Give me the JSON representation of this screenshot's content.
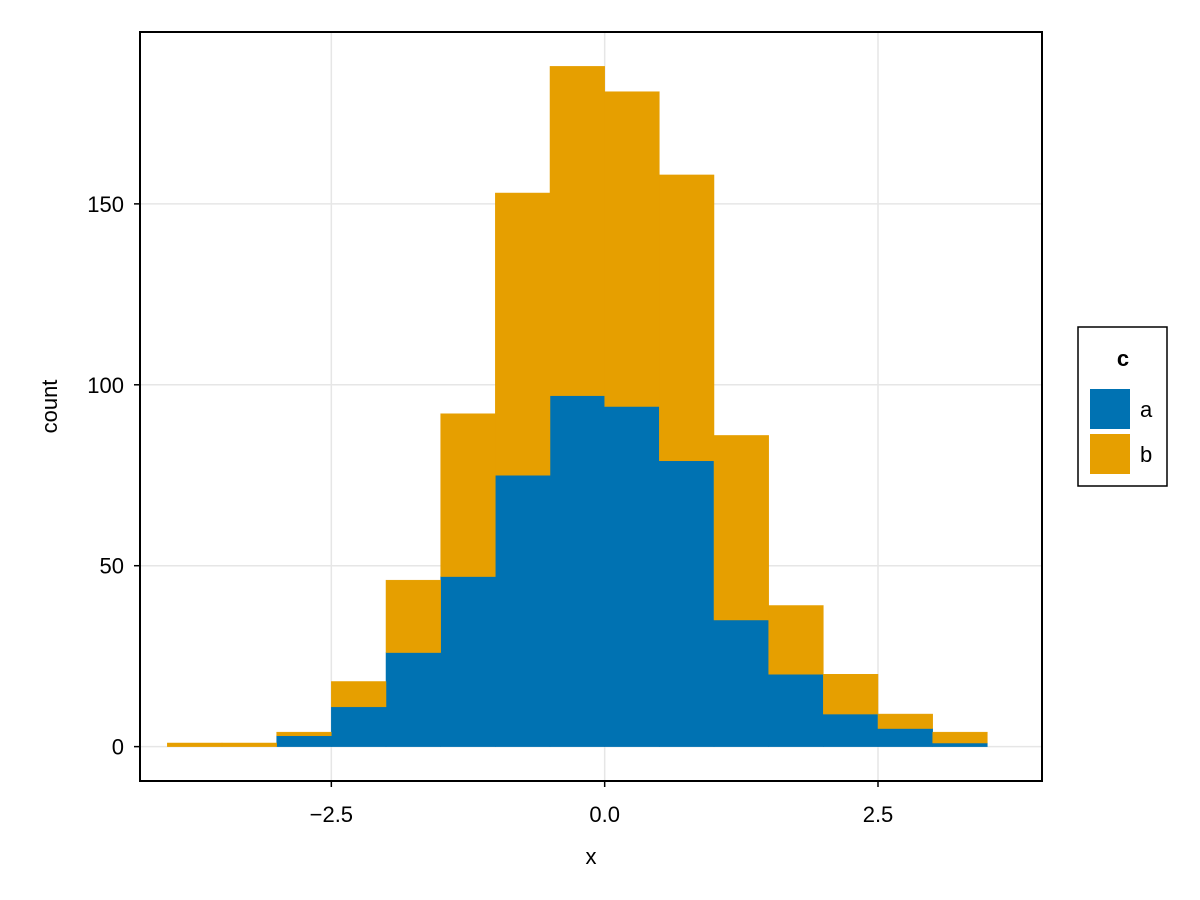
{
  "chart_data": {
    "type": "bar",
    "stacked": true,
    "title": "",
    "xlabel": "x",
    "ylabel": "count",
    "bin_edges": [
      -4.0,
      -3.5,
      -3.0,
      -2.5,
      -2.0,
      -1.5,
      -1.0,
      -0.5,
      0.0,
      0.5,
      1.0,
      1.5,
      2.0,
      2.5,
      3.0,
      3.5
    ],
    "series": [
      {
        "name": "a",
        "color": "#0072b2",
        "values": [
          0,
          0,
          3,
          11,
          26,
          47,
          75,
          97,
          94,
          79,
          35,
          20,
          9,
          5,
          1
        ]
      },
      {
        "name": "b",
        "color": "#e69f00",
        "values": [
          1,
          1,
          1,
          7,
          20,
          45,
          78,
          91,
          87,
          79,
          51,
          19,
          11,
          4,
          3
        ]
      }
    ],
    "xlim": [
      -4.25,
      4.0
    ],
    "ylim": [
      -9.5,
      197.5
    ],
    "x_ticks": [
      -2.5,
      0.0,
      2.5
    ],
    "x_tick_labels": [
      "−2.5",
      "0.0",
      "2.5"
    ],
    "y_ticks": [
      0,
      50,
      100,
      150
    ],
    "y_tick_labels": [
      "0",
      "50",
      "100",
      "150"
    ],
    "grid": true,
    "legend": {
      "title": "c",
      "position": "right",
      "entries": [
        "a",
        "b"
      ]
    }
  }
}
